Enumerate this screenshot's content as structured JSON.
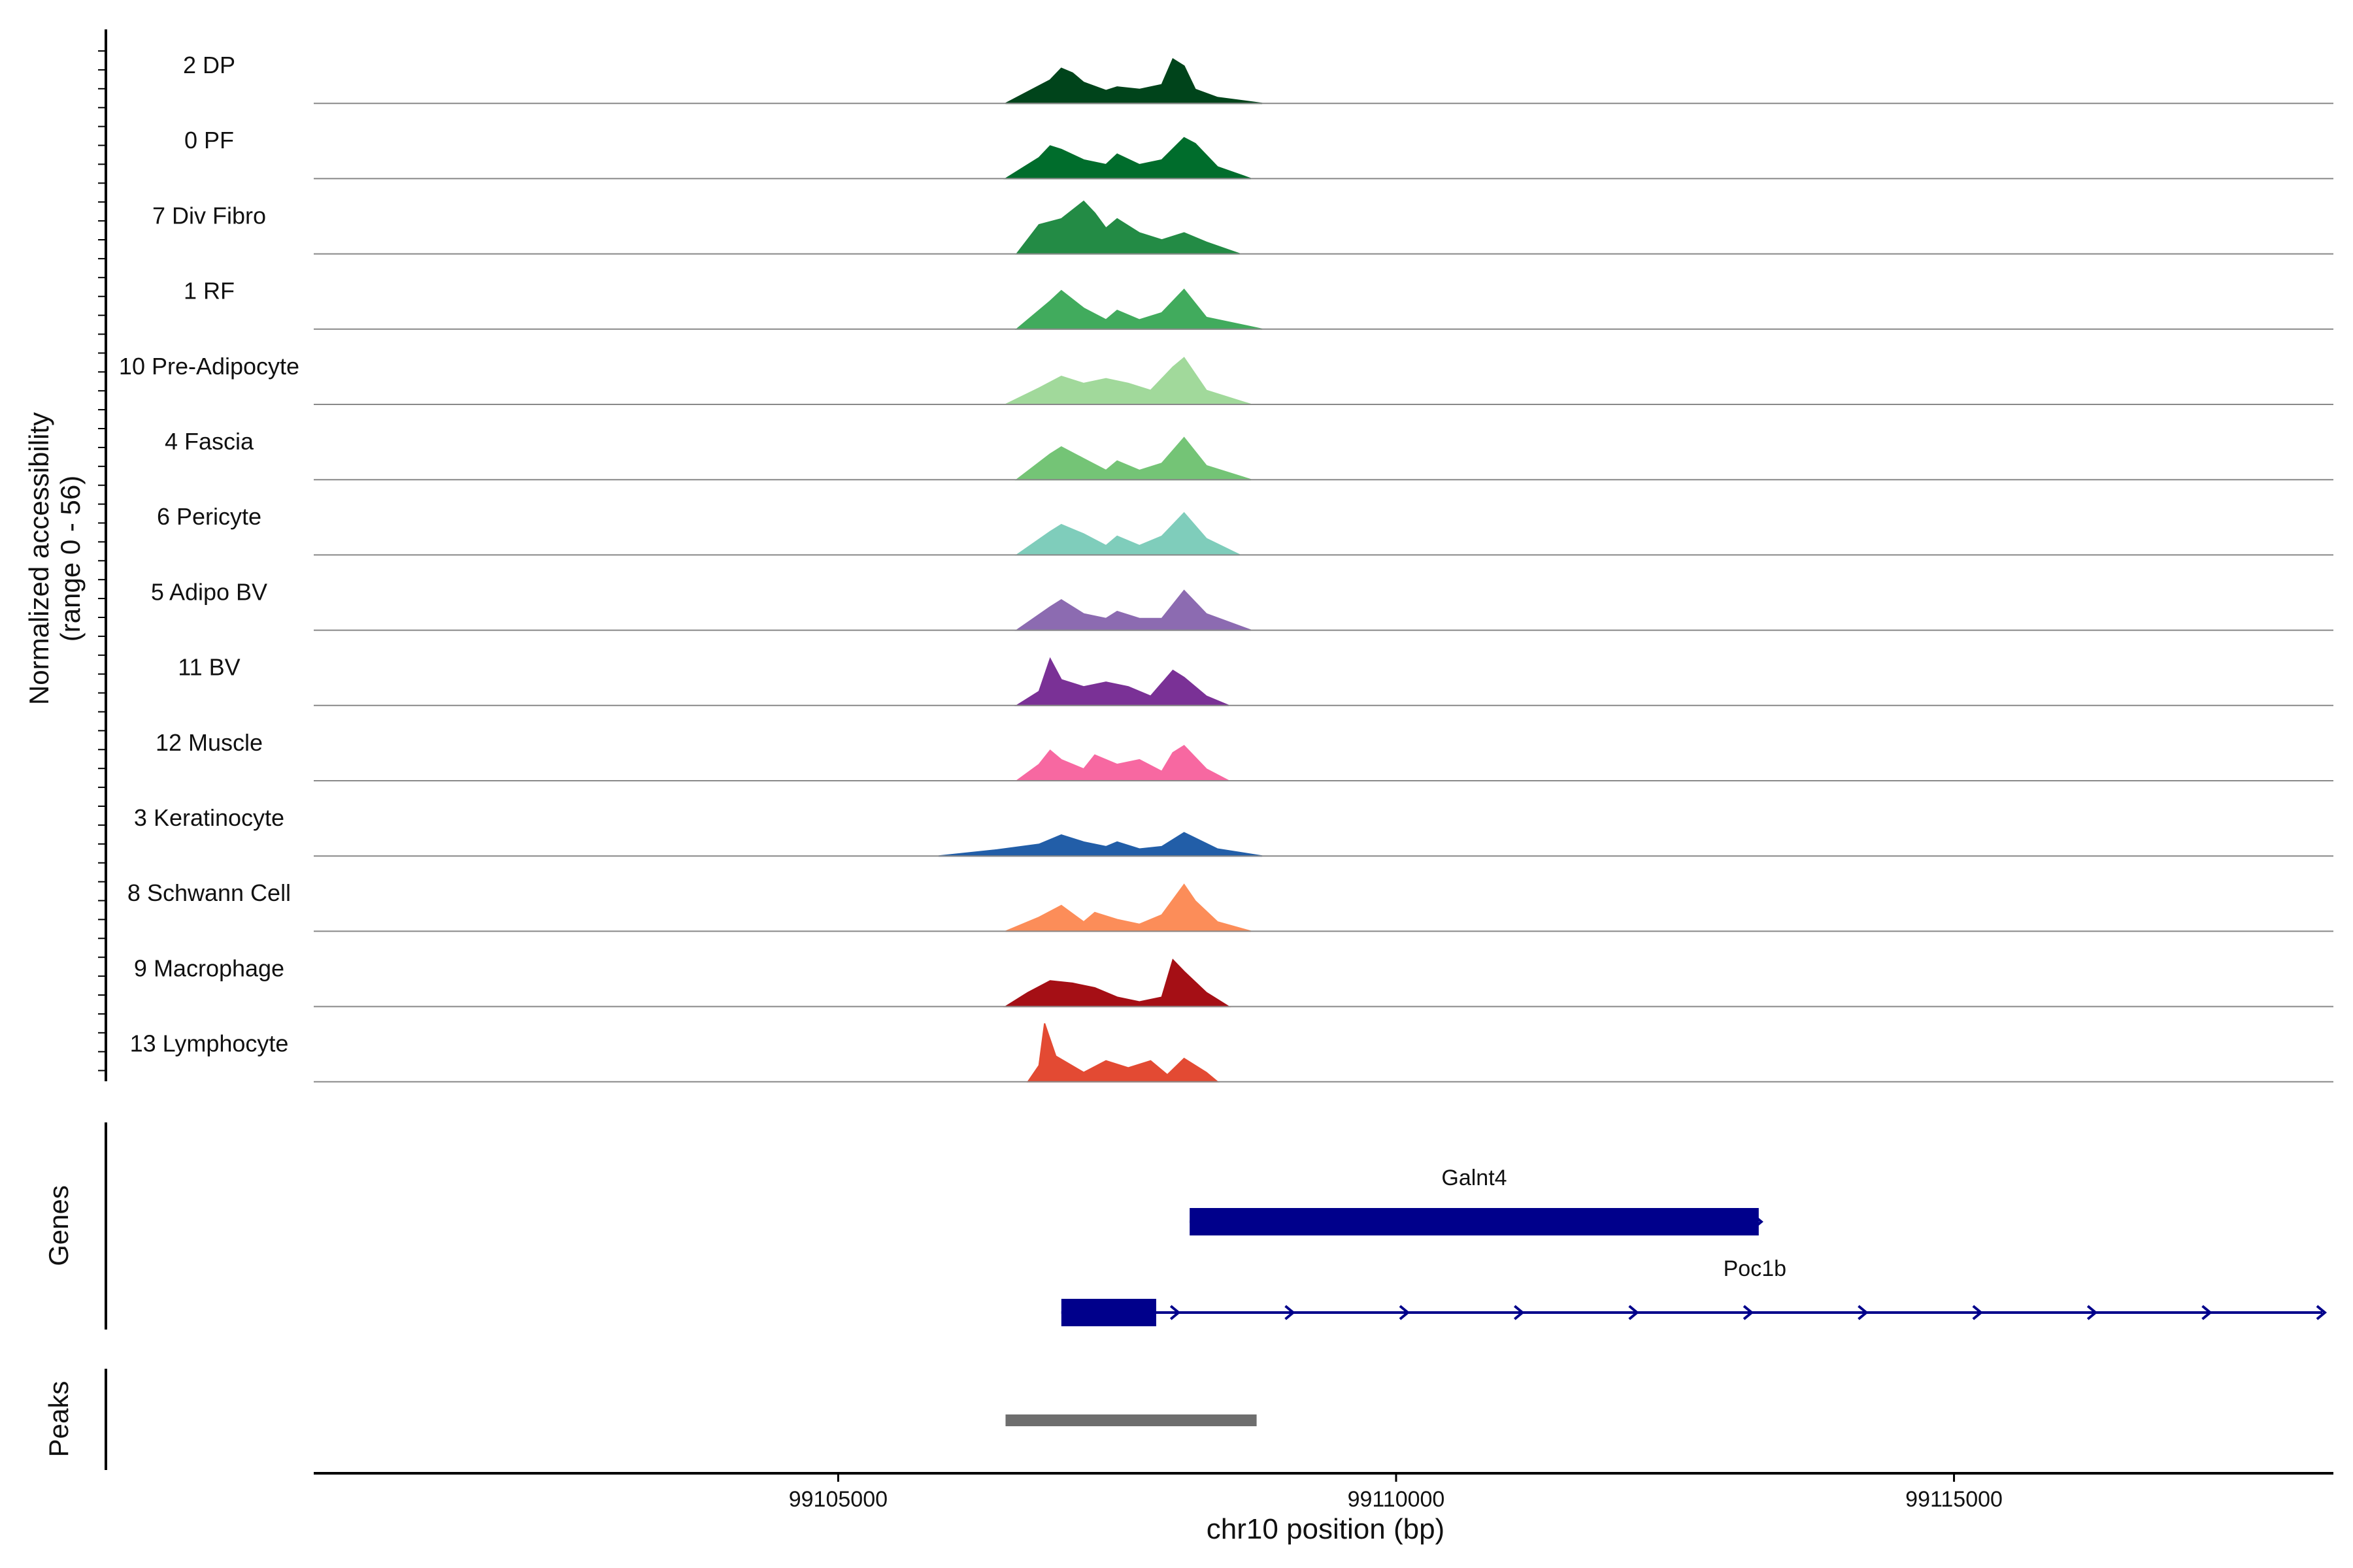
{
  "chart_data": {
    "type": "area",
    "title": "",
    "ylabel": "Normalized accessibility",
    "ylabel_range": "(range 0 - 56)",
    "ylim": [
      0,
      56
    ],
    "xlabel": "chr10 position (bp)",
    "xlim": [
      99100300,
      99118400
    ],
    "x_ticks": [
      {
        "value": 99105000,
        "label": "99105000"
      },
      {
        "value": 99110000,
        "label": "99110000"
      },
      {
        "value": 99115000,
        "label": "99115000"
      }
    ],
    "genes_label": "Genes",
    "peaks_label": "Peaks",
    "series": [
      {
        "name": "2 DP",
        "color": "#00441b",
        "x": [
          99106500,
          99106900,
          99107000,
          99107100,
          99107200,
          99107400,
          99107500,
          99107700,
          99107900,
          99108000,
          99108100,
          99108200,
          99108400,
          99108800
        ],
        "values": [
          0,
          20,
          30,
          26,
          18,
          11,
          14,
          12,
          16,
          38,
          32,
          12,
          5,
          0
        ]
      },
      {
        "name": "0 PF",
        "color": "#006d2c",
        "x": [
          99106500,
          99106800,
          99106900,
          99107000,
          99107200,
          99107400,
          99107500,
          99107700,
          99107900,
          99108100,
          99108200,
          99108400,
          99108700
        ],
        "values": [
          0,
          18,
          28,
          25,
          16,
          12,
          21,
          12,
          16,
          35,
          30,
          10,
          0
        ]
      },
      {
        "name": "7 Div Fibro",
        "color": "#238b45",
        "x": [
          99106600,
          99106800,
          99107000,
          99107200,
          99107300,
          99107400,
          99107500,
          99107700,
          99107900,
          99108100,
          99108300,
          99108600
        ],
        "values": [
          0,
          25,
          30,
          45,
          35,
          22,
          30,
          18,
          12,
          18,
          10,
          0
        ]
      },
      {
        "name": "1 RF",
        "color": "#41ab5d",
        "x": [
          99106600,
          99106900,
          99107000,
          99107200,
          99107400,
          99107500,
          99107700,
          99107900,
          99108100,
          99108300,
          99108800
        ],
        "values": [
          0,
          24,
          33,
          18,
          8,
          16,
          8,
          14,
          34,
          10,
          0
        ]
      },
      {
        "name": "10 Pre-Adipocyte",
        "color": "#a1d99b",
        "x": [
          99106500,
          99106800,
          99107000,
          99107200,
          99107400,
          99107600,
          99107800,
          99108000,
          99108100,
          99108300,
          99108700
        ],
        "values": [
          0,
          14,
          24,
          18,
          22,
          18,
          12,
          32,
          40,
          12,
          0
        ]
      },
      {
        "name": "4 Fascia",
        "color": "#74c476",
        "x": [
          99106600,
          99106900,
          99107000,
          99107200,
          99107400,
          99107500,
          99107700,
          99107900,
          99108100,
          99108300,
          99108700
        ],
        "values": [
          0,
          22,
          28,
          18,
          8,
          16,
          8,
          14,
          36,
          12,
          0
        ]
      },
      {
        "name": "6 Pericyte",
        "color": "#7fcdbb",
        "x": [
          99106600,
          99106900,
          99107000,
          99107200,
          99107400,
          99107500,
          99107700,
          99107900,
          99108100,
          99108300,
          99108600
        ],
        "values": [
          0,
          20,
          26,
          18,
          8,
          16,
          8,
          16,
          36,
          14,
          0
        ]
      },
      {
        "name": "5 Adipo BV",
        "color": "#8c6bb1",
        "x": [
          99106600,
          99106900,
          99107000,
          99107200,
          99107400,
          99107500,
          99107700,
          99107900,
          99108100,
          99108300,
          99108700
        ],
        "values": [
          0,
          20,
          26,
          14,
          10,
          16,
          10,
          10,
          34,
          14,
          0
        ]
      },
      {
        "name": "11 BV",
        "color": "#7a3196",
        "x": [
          99106600,
          99106800,
          99106900,
          99107000,
          99107200,
          99107400,
          99107600,
          99107800,
          99108000,
          99108100,
          99108300,
          99108500
        ],
        "values": [
          0,
          12,
          40,
          22,
          16,
          20,
          16,
          8,
          30,
          24,
          8,
          0
        ]
      },
      {
        "name": "12 Muscle",
        "color": "#f768a1",
        "x": [
          99106600,
          99106800,
          99106900,
          99107000,
          99107200,
          99107300,
          99107500,
          99107700,
          99107900,
          99108000,
          99108100,
          99108300,
          99108500
        ],
        "values": [
          0,
          14,
          26,
          18,
          10,
          22,
          14,
          18,
          8,
          24,
          30,
          10,
          0
        ]
      },
      {
        "name": "3 Keratinocyte",
        "color": "#225ea8",
        "x": [
          99105900,
          99106400,
          99106800,
          99107000,
          99107200,
          99107400,
          99107500,
          99107700,
          99107900,
          99108100,
          99108400,
          99108800
        ],
        "values": [
          0,
          5,
          10,
          18,
          12,
          8,
          12,
          6,
          8,
          20,
          6,
          0
        ]
      },
      {
        "name": "8 Schwann Cell",
        "color": "#fc8d59",
        "x": [
          99106500,
          99106800,
          99107000,
          99107200,
          99107300,
          99107500,
          99107700,
          99107900,
          99108100,
          99108200,
          99108400,
          99108700
        ],
        "values": [
          0,
          12,
          22,
          8,
          16,
          10,
          6,
          14,
          40,
          26,
          8,
          0
        ]
      },
      {
        "name": "9 Macrophage",
        "color": "#a50f15",
        "x": [
          99106500,
          99106700,
          99106900,
          99107100,
          99107300,
          99107500,
          99107700,
          99107900,
          99108000,
          99108100,
          99108300,
          99108500
        ],
        "values": [
          0,
          12,
          22,
          20,
          16,
          8,
          4,
          8,
          40,
          30,
          12,
          0
        ]
      },
      {
        "name": "13 Lymphocyte",
        "color": "#e34a33",
        "x": [
          99106700,
          99106800,
          99106850,
          99106950,
          99107200,
          99107400,
          99107600,
          99107800,
          99107950,
          99108100,
          99108300,
          99108400
        ],
        "values": [
          0,
          14,
          50,
          22,
          8,
          18,
          12,
          18,
          6,
          20,
          8,
          0
        ]
      }
    ],
    "genes": [
      {
        "name": "Galnt4",
        "start": 99108150,
        "end": 99113250,
        "strand": "+",
        "exons": [
          [
            99108150,
            99113250
          ]
        ]
      },
      {
        "name": "Poc1b",
        "start": 99107000,
        "end": 99118300,
        "strand": "+",
        "exons": [
          [
            99107000,
            99107850
          ]
        ]
      }
    ],
    "peaks": [
      {
        "start": 99106500,
        "end": 99108750
      }
    ]
  }
}
